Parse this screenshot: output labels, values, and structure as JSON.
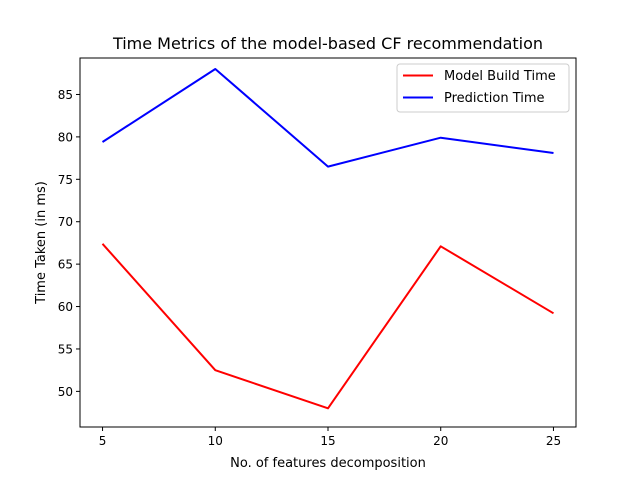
{
  "chart_data": {
    "type": "line",
    "title": "Time Metrics of the model-based CF recommendation",
    "xlabel": "No. of features decomposition",
    "ylabel": "Time Taken (in ms)",
    "x": [
      5,
      10,
      15,
      20,
      25
    ],
    "xticks": [
      5,
      10,
      15,
      20,
      25
    ],
    "yticks": [
      50,
      55,
      60,
      65,
      70,
      75,
      80,
      85
    ],
    "xlim": [
      4,
      26
    ],
    "ylim": [
      45.8,
      89.3
    ],
    "grid": false,
    "legend_position": "top-right",
    "series": [
      {
        "name": "Model Build Time",
        "color": "#ff0000",
        "values": [
          67.4,
          52.5,
          48.0,
          67.1,
          59.2
        ]
      },
      {
        "name": "Prediction Time",
        "color": "#0000ff",
        "values": [
          79.4,
          88.0,
          76.5,
          79.9,
          78.1
        ]
      }
    ]
  }
}
